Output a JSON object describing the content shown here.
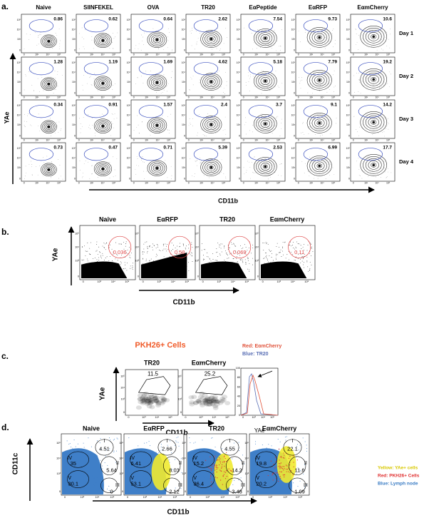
{
  "panel_a": {
    "letter": "a.",
    "columns": [
      "Naive",
      "SIINFEKEL",
      "OVA",
      "TR20",
      "EαPeptide",
      "EαRFP",
      "EαmCherry"
    ],
    "rows": [
      {
        "label": "Day 1",
        "values": [
          "0.86",
          "0.62",
          "0.64",
          "2.62",
          "7.54",
          "9.73",
          "10.6"
        ]
      },
      {
        "label": "Day 2",
        "values": [
          "1.28",
          "1.19",
          "1.69",
          "4.62",
          "5.18",
          "7.79",
          "19.2"
        ]
      },
      {
        "label": "Day 3",
        "values": [
          "0.34",
          "0.91",
          "1.57",
          "2.4",
          "3.7",
          "9.1",
          "14.2"
        ]
      },
      {
        "label": "Day 4",
        "values": [
          "0.73",
          "0.47",
          "0.71",
          "5.39",
          "2.53",
          "6.99",
          "17.7"
        ]
      }
    ],
    "y_axis": "YAe",
    "x_axis": "CD11b"
  },
  "panel_b": {
    "letter": "b.",
    "plots": [
      {
        "title": "Naive",
        "value": "0.036"
      },
      {
        "title": "EαRFP",
        "value": "0.58"
      },
      {
        "title": "TR20",
        "value": "0.069"
      },
      {
        "title": "EαmCherry",
        "value": "0.11"
      }
    ],
    "y_axis": "YAe",
    "x_axis": "CD11b"
  },
  "panel_c": {
    "letter": "c.",
    "title": "PKH26+ Cells",
    "plots": [
      {
        "title": "TR20",
        "value": "11.5"
      },
      {
        "title": "EαmCherry",
        "value": "25.2"
      }
    ],
    "y_axis": "YAe",
    "x_axis": "CD11b",
    "histogram": {
      "legend": [
        "Red: EαmCherry",
        "Blue: TR20"
      ],
      "yticks": [
        "0",
        "20",
        "40",
        "60",
        "80",
        "100"
      ],
      "x_axis": "YAe"
    }
  },
  "panel_d": {
    "letter": "d.",
    "gate_labels": [
      "I",
      "II",
      "III",
      "IV",
      "V"
    ],
    "plots": [
      {
        "title": "Naive",
        "values": [
          "4.51",
          "5.64",
          "0",
          "35",
          "30.1"
        ]
      },
      {
        "title": "EαRFP",
        "values": [
          "2.66",
          "8.03",
          "2.12",
          "6.41",
          "53.1"
        ]
      },
      {
        "title": "TR20",
        "values": [
          "4.55",
          "14.2",
          "3.48",
          "15.2",
          "36.4"
        ]
      },
      {
        "title": "EαmCherry",
        "values": [
          "22.1",
          "11.6",
          "1.09",
          "19.8",
          "20.2"
        ]
      }
    ],
    "legend": [
      "Yellow: YAe+ cells",
      "Red: PKH26+ Cells",
      "Blue: Lymph node"
    ],
    "y_axis": "CD11c",
    "x_axis": "CD11b"
  },
  "log_ticks": [
    "0",
    "10³",
    "10⁴",
    "10⁵"
  ]
}
